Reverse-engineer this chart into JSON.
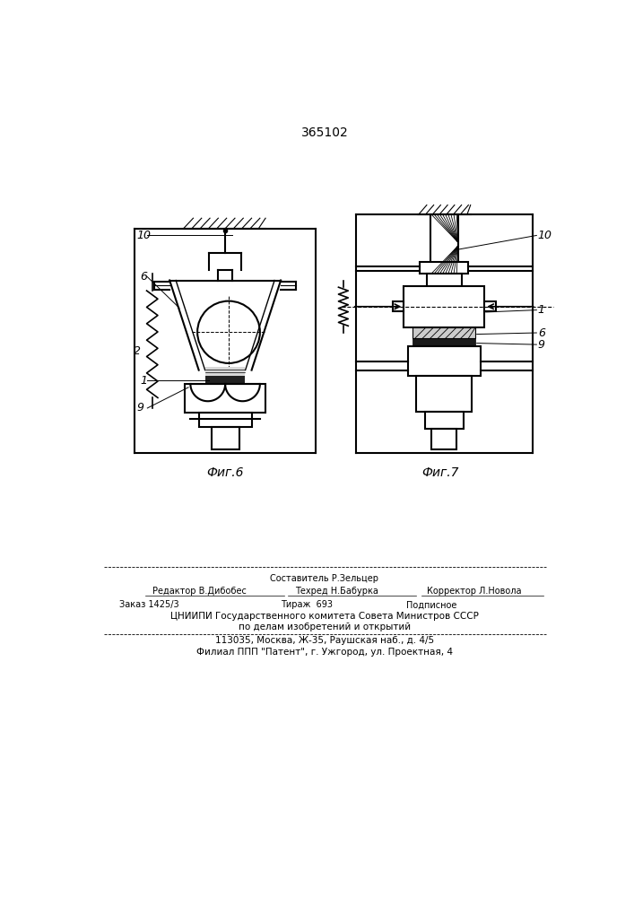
{
  "title": "365102",
  "fig6_label": "Фиг.6",
  "fig7_label": "Фиг.7",
  "bg_color": "#ffffff",
  "line_color": "#000000",
  "footer_line1": "Составитель Р.Зельцер",
  "footer_line2a": "Редактор В.Дибобес",
  "footer_line2b": "Техред Н.Бабурка",
  "footer_line2c": "Корректор Л.Новола",
  "footer_line3a": "Заказ 1425/3",
  "footer_line3b": "Тираж  693",
  "footer_line3c": "Подписное",
  "footer_line4": "ЦНИИПИ Государственного комитета Совета Министров СССР",
  "footer_line5": "по делам изобретений и открытий",
  "footer_line6": "113035, Москва, Ж-35, Раушская наб., д. 4/5",
  "footer_line7": "Филиал ППП \"Патент\", г. Ужгород, ул. Проектная, 4"
}
